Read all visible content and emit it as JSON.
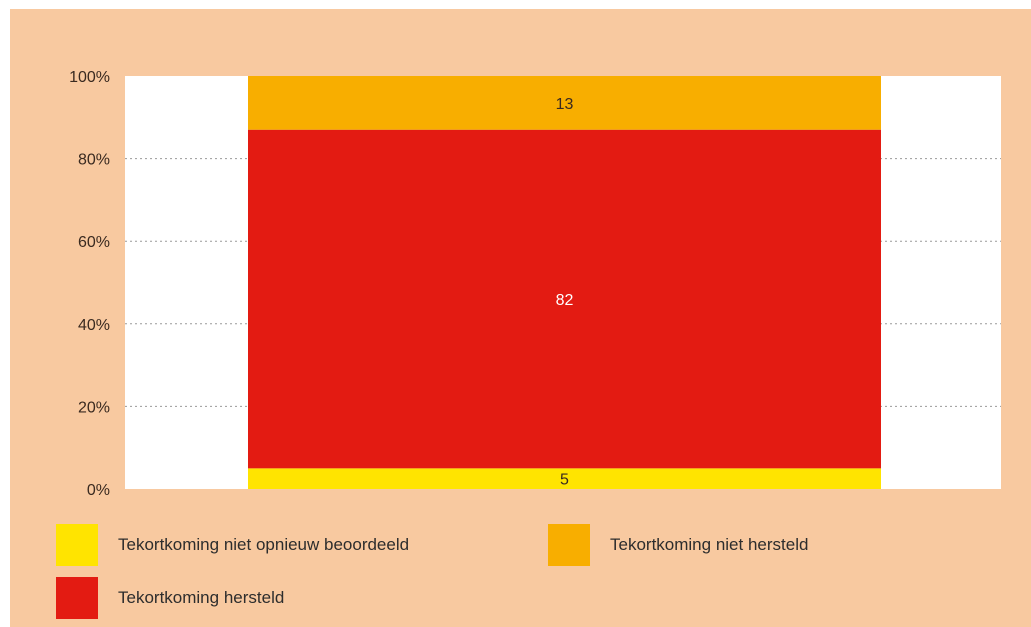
{
  "chart_data": {
    "type": "bar",
    "stacked": true,
    "percent": true,
    "categories": [
      ""
    ],
    "series": [
      {
        "name": "Tekortkoming niet opnieuw beoordeeld",
        "values": [
          5
        ],
        "color": "#ffe400",
        "label_color": "#3a2a20"
      },
      {
        "name": "Tekortkoming hersteld",
        "values": [
          82
        ],
        "color": "#e31b12",
        "label_color": "#ffffff"
      },
      {
        "name": "Tekortkoming niet hersteld",
        "values": [
          13
        ],
        "color": "#f8ae00",
        "label_color": "#3a2a20"
      }
    ],
    "ylim": [
      0,
      100
    ],
    "yticks": [
      {
        "value": 0,
        "label": "0%"
      },
      {
        "value": 20,
        "label": "20%"
      },
      {
        "value": 40,
        "label": "40%"
      },
      {
        "value": 60,
        "label": "60%"
      },
      {
        "value": 80,
        "label": "80%"
      },
      {
        "value": 100,
        "label": "100%"
      }
    ],
    "grid": true,
    "legend_position": "bottom"
  },
  "legend": [
    {
      "label": "Tekortkoming niet opnieuw beoordeeld",
      "color": "#ffe400"
    },
    {
      "label": "Tekortkoming niet hersteld",
      "color": "#f8ae00"
    },
    {
      "label": "Tekortkoming hersteld",
      "color": "#e31b12"
    }
  ]
}
